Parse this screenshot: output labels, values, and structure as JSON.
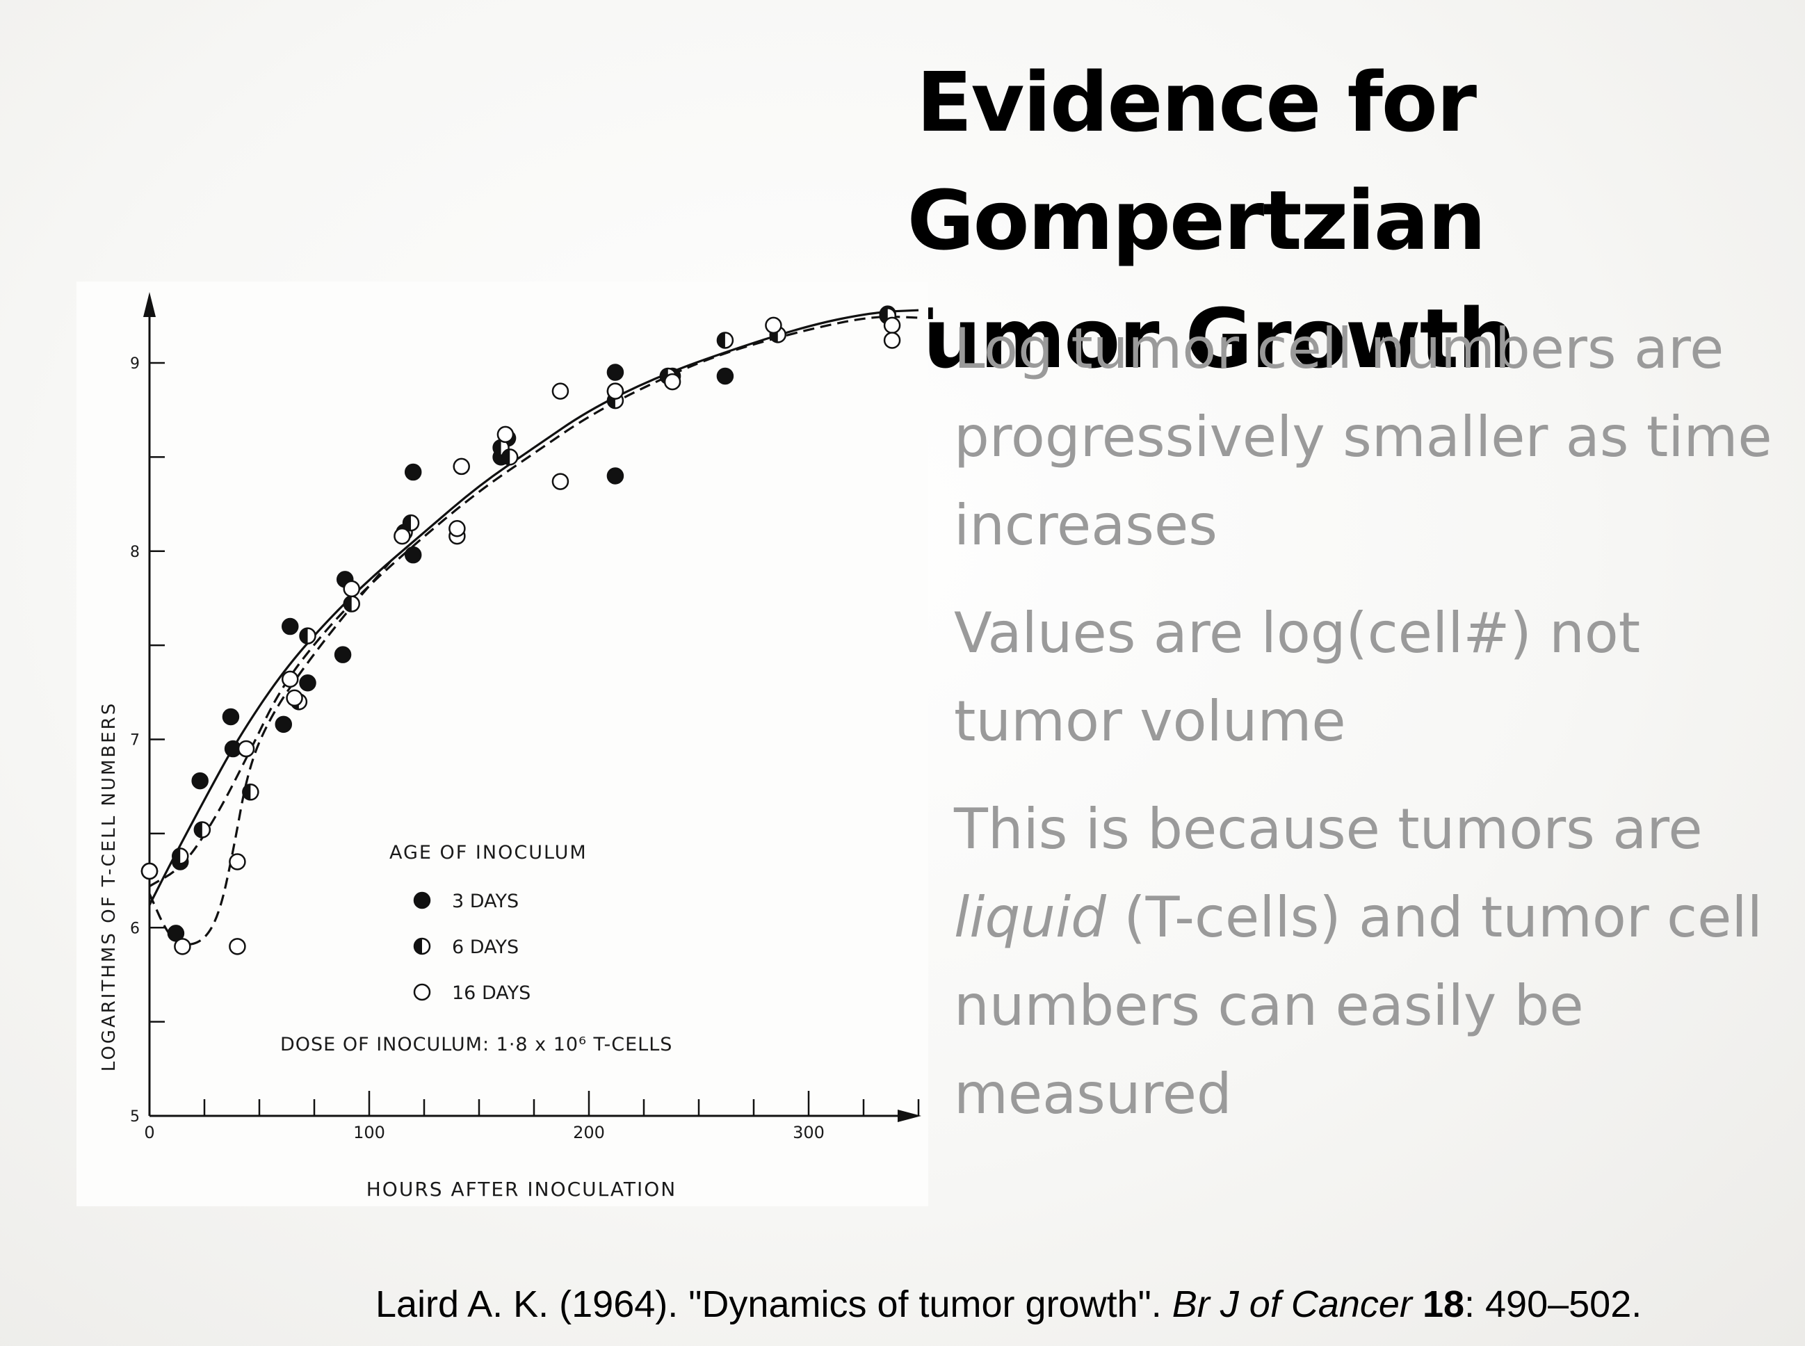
{
  "slide": {
    "title_line1": "Evidence for Gompertzian",
    "title_line2": "Tumor Growth",
    "bullets": [
      {
        "text": "Log tumor cell numbers are progressively smaller as time increases"
      },
      {
        "text": "Values are log(cell#) not tumor volume"
      },
      {
        "pre": "This is because tumors are ",
        "em": "liquid",
        "post": " (T-cells) and tumor cell numbers can easily be measured"
      }
    ],
    "citation": {
      "main": "Laird A. K. (1964). \"Dynamics of tumor growth\". ",
      "journal": "Br J of Cancer",
      "volume": "18",
      "pages": ": 490–502."
    }
  },
  "chart_data": {
    "type": "scatter",
    "xlabel": "HOURS AFTER INOCULATION",
    "ylabel": "LOGARITHMS OF T-CELL NUMBERS",
    "xlim": [
      0,
      380
    ],
    "ylim": [
      5,
      9.4
    ],
    "x_ticks": [
      0,
      100,
      200,
      300
    ],
    "y_ticks": [
      5,
      6,
      7,
      8,
      9
    ],
    "x_tick_labels": [
      "0",
      "100",
      "200",
      "300"
    ],
    "y_tick_labels": [
      "5",
      "6",
      "7",
      "8",
      "9"
    ],
    "legend": {
      "title": "AGE OF INOCULUM",
      "entries": [
        "3 DAYS",
        "6 DAYS",
        "16 DAYS"
      ],
      "note": "DOSE OF INOCULUM: 1·8 x 10⁶ T-CELLS"
    },
    "series": [
      {
        "name": "3 DAYS",
        "marker": "filled",
        "points": [
          [
            0,
            6.3
          ],
          [
            12,
            5.97
          ],
          [
            14,
            6.35
          ],
          [
            23,
            6.78
          ],
          [
            37,
            7.12
          ],
          [
            38,
            6.95
          ],
          [
            61,
            7.08
          ],
          [
            64,
            7.6
          ],
          [
            72,
            7.3
          ],
          [
            88,
            7.45
          ],
          [
            89,
            7.85
          ],
          [
            120,
            8.42
          ],
          [
            120,
            7.98
          ],
          [
            160,
            8.5
          ],
          [
            163,
            8.6
          ],
          [
            212,
            8.95
          ],
          [
            212,
            8.4
          ],
          [
            238,
            8.93
          ],
          [
            262,
            8.93
          ],
          [
            336,
            9.26
          ]
        ]
      },
      {
        "name": "6 DAYS",
        "marker": "half",
        "points": [
          [
            0,
            6.3
          ],
          [
            14,
            6.38
          ],
          [
            24,
            6.52
          ],
          [
            46,
            6.72
          ],
          [
            68,
            7.2
          ],
          [
            72,
            7.55
          ],
          [
            92,
            7.72
          ],
          [
            116,
            8.1
          ],
          [
            119,
            8.15
          ],
          [
            160,
            8.55
          ],
          [
            164,
            8.5
          ],
          [
            212,
            8.8
          ],
          [
            212,
            8.85
          ],
          [
            236,
            8.93
          ],
          [
            262,
            9.12
          ],
          [
            286,
            9.15
          ],
          [
            336,
            9.25
          ]
        ]
      },
      {
        "name": "16 DAYS",
        "marker": "open",
        "points": [
          [
            0,
            6.3
          ],
          [
            15,
            5.9
          ],
          [
            40,
            6.35
          ],
          [
            40,
            5.9
          ],
          [
            44,
            6.95
          ],
          [
            64,
            7.32
          ],
          [
            66,
            7.22
          ],
          [
            92,
            7.8
          ],
          [
            115,
            8.08
          ],
          [
            140,
            8.08
          ],
          [
            140,
            8.12
          ],
          [
            142,
            8.45
          ],
          [
            162,
            8.62
          ],
          [
            187,
            8.85
          ],
          [
            187,
            8.37
          ],
          [
            212,
            8.85
          ],
          [
            238,
            8.9
          ],
          [
            284,
            9.2
          ],
          [
            338,
            9.2
          ],
          [
            338,
            9.12
          ]
        ]
      }
    ],
    "curves": [
      {
        "style": "solid",
        "points": [
          [
            0,
            6.12
          ],
          [
            10,
            6.35
          ],
          [
            25,
            6.68
          ],
          [
            40,
            7.0
          ],
          [
            60,
            7.35
          ],
          [
            80,
            7.62
          ],
          [
            100,
            7.85
          ],
          [
            125,
            8.1
          ],
          [
            150,
            8.35
          ],
          [
            175,
            8.55
          ],
          [
            200,
            8.75
          ],
          [
            230,
            8.92
          ],
          [
            260,
            9.05
          ],
          [
            300,
            9.2
          ],
          [
            330,
            9.27
          ],
          [
            350,
            9.28
          ]
        ]
      },
      {
        "style": "dashed",
        "points": [
          [
            0,
            6.22
          ],
          [
            15,
            6.32
          ],
          [
            30,
            6.58
          ],
          [
            45,
            6.92
          ],
          [
            60,
            7.28
          ],
          [
            80,
            7.58
          ],
          [
            100,
            7.82
          ],
          [
            125,
            8.08
          ],
          [
            150,
            8.32
          ],
          [
            175,
            8.52
          ],
          [
            200,
            8.72
          ],
          [
            230,
            8.9
          ],
          [
            260,
            9.05
          ],
          [
            300,
            9.18
          ],
          [
            330,
            9.25
          ],
          [
            350,
            9.24
          ]
        ]
      },
      {
        "style": "dashed",
        "points": [
          [
            0,
            6.18
          ],
          [
            8,
            5.97
          ],
          [
            15,
            5.9
          ],
          [
            25,
            5.93
          ],
          [
            32,
            6.08
          ],
          [
            38,
            6.4
          ],
          [
            45,
            6.85
          ],
          [
            55,
            7.12
          ],
          [
            70,
            7.38
          ],
          [
            90,
            7.68
          ],
          [
            110,
            7.95
          ]
        ]
      }
    ]
  }
}
